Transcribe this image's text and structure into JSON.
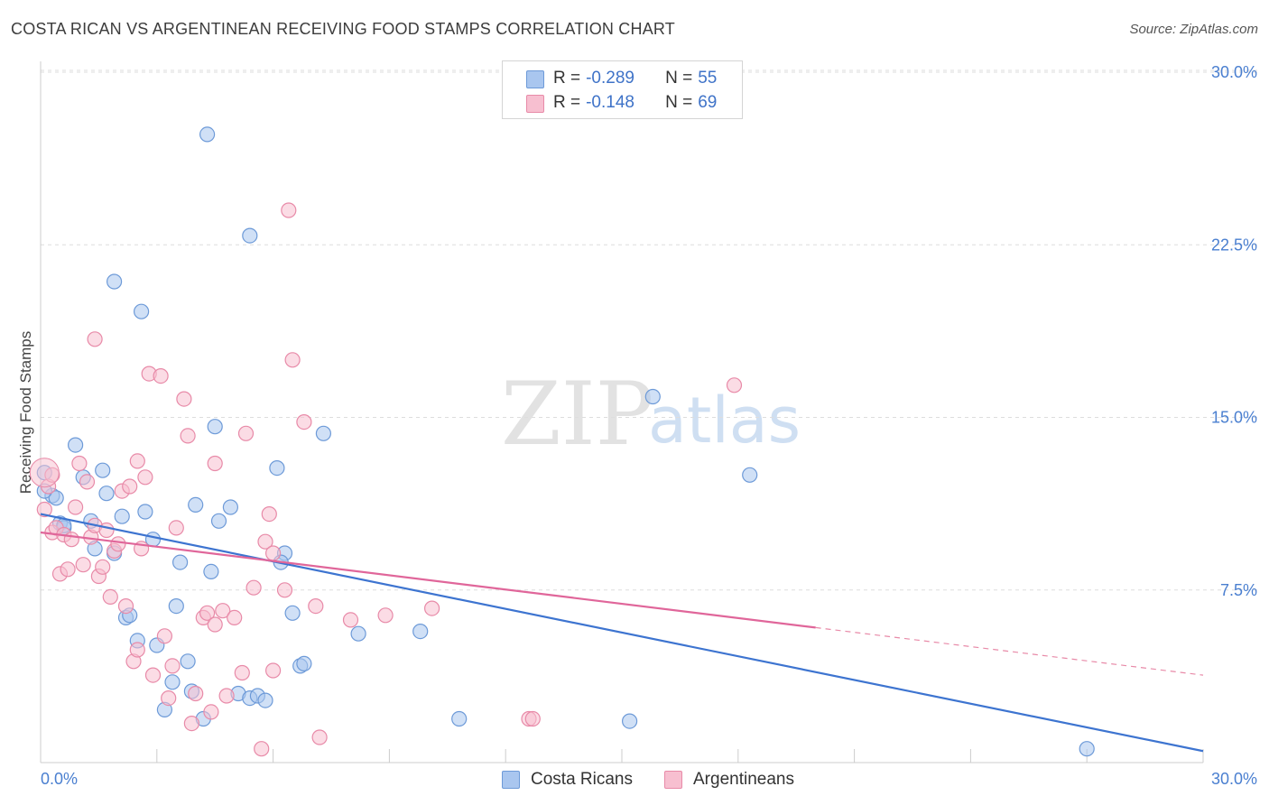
{
  "header": {
    "title": "COSTA RICAN VS ARGENTINEAN RECEIVING FOOD STAMPS CORRELATION CHART",
    "source": "Source: ZipAtlas.com"
  },
  "watermark": {
    "zip": "ZIP",
    "atlas": "atlas"
  },
  "stats": [
    {
      "r_label": "R =",
      "r_value": "-0.289",
      "n_label": "N =",
      "n_value": "55",
      "color": "#a9c6ef",
      "border": "#6d9ad8"
    },
    {
      "r_label": "R =",
      "r_value": "-0.148",
      "n_label": "N =",
      "n_value": "69",
      "color": "#f7bfd0",
      "border": "#e88aa8"
    }
  ],
  "legend": [
    {
      "label": "Costa Ricans",
      "color": "#a9c6ef",
      "border": "#6d9ad8"
    },
    {
      "label": "Argentineans",
      "color": "#f7bfd0",
      "border": "#e88aa8"
    }
  ],
  "chart_data": {
    "type": "scatter",
    "title": "COSTA RICAN VS ARGENTINEAN RECEIVING FOOD STAMPS CORRELATION CHART",
    "xlabel": "",
    "ylabel": "Receiving Food Stamps",
    "xlim": [
      0,
      30
    ],
    "ylim": [
      0,
      30
    ],
    "x_tick_labels": [
      "0.0%",
      "30.0%"
    ],
    "y_ticks": [
      7.5,
      15.0,
      22.5,
      30.0
    ],
    "y_tick_labels": [
      "7.5%",
      "15.0%",
      "22.5%",
      "30.0%"
    ],
    "grid": "horizontal dashed",
    "legend_position": "bottom-center",
    "series": [
      {
        "name": "Costa Ricans",
        "color": "#6d9ad8",
        "fill": "#a9c6ef",
        "trend": {
          "x": [
            0,
            30
          ],
          "y": [
            10.8,
            0.5
          ],
          "dashed_from": null
        },
        "points": [
          [
            0.1,
            12.6
          ],
          [
            0.3,
            11.6
          ],
          [
            0.4,
            11.5
          ],
          [
            0.5,
            10.4
          ],
          [
            0.6,
            10.2
          ],
          [
            0.9,
            13.8
          ],
          [
            1.1,
            12.4
          ],
          [
            1.3,
            10.5
          ],
          [
            1.4,
            9.3
          ],
          [
            1.6,
            12.7
          ],
          [
            1.7,
            11.7
          ],
          [
            1.9,
            9.1
          ],
          [
            2.1,
            10.7
          ],
          [
            2.2,
            6.3
          ],
          [
            2.3,
            6.4
          ],
          [
            2.5,
            5.3
          ],
          [
            2.7,
            10.9
          ],
          [
            2.9,
            9.7
          ],
          [
            3.0,
            5.1
          ],
          [
            3.2,
            2.3
          ],
          [
            3.4,
            3.5
          ],
          [
            3.5,
            6.8
          ],
          [
            3.6,
            8.7
          ],
          [
            3.8,
            4.4
          ],
          [
            3.9,
            3.1
          ],
          [
            4.0,
            11.2
          ],
          [
            4.2,
            1.9
          ],
          [
            4.4,
            8.3
          ],
          [
            4.5,
            14.6
          ],
          [
            4.6,
            10.5
          ],
          [
            4.9,
            11.1
          ],
          [
            5.1,
            3.0
          ],
          [
            5.4,
            2.8
          ],
          [
            5.6,
            2.9
          ],
          [
            5.8,
            2.7
          ],
          [
            6.1,
            12.8
          ],
          [
            6.3,
            9.1
          ],
          [
            6.5,
            6.5
          ],
          [
            6.7,
            4.2
          ],
          [
            6.8,
            4.3
          ],
          [
            6.2,
            8.7
          ],
          [
            7.3,
            14.3
          ],
          [
            8.2,
            5.6
          ],
          [
            9.8,
            5.7
          ],
          [
            10.8,
            1.9
          ],
          [
            15.8,
            15.9
          ],
          [
            15.2,
            1.8
          ],
          [
            18.3,
            12.5
          ],
          [
            27.0,
            0.6
          ],
          [
            4.3,
            27.3
          ],
          [
            5.4,
            22.9
          ],
          [
            1.9,
            20.9
          ],
          [
            2.6,
            19.6
          ],
          [
            0.1,
            11.8
          ],
          [
            0.6,
            10.3
          ]
        ]
      },
      {
        "name": "Argentineans",
        "color": "#e88aa8",
        "fill": "#f7bfd0",
        "trend": {
          "x": [
            0,
            30
          ],
          "y": [
            10.0,
            3.8
          ],
          "dashed_from": 20.0
        },
        "points": [
          [
            0.1,
            11.0
          ],
          [
            0.2,
            12.0
          ],
          [
            0.3,
            10.0
          ],
          [
            0.4,
            10.2
          ],
          [
            0.5,
            8.2
          ],
          [
            0.6,
            9.9
          ],
          [
            0.7,
            8.4
          ],
          [
            0.8,
            9.7
          ],
          [
            0.9,
            11.1
          ],
          [
            1.0,
            13.0
          ],
          [
            1.1,
            8.6
          ],
          [
            1.2,
            12.2
          ],
          [
            1.3,
            9.8
          ],
          [
            1.4,
            10.3
          ],
          [
            1.5,
            8.1
          ],
          [
            1.6,
            8.5
          ],
          [
            1.7,
            10.1
          ],
          [
            1.8,
            7.2
          ],
          [
            1.9,
            9.2
          ],
          [
            2.0,
            9.5
          ],
          [
            2.1,
            11.8
          ],
          [
            2.2,
            6.8
          ],
          [
            2.3,
            12.0
          ],
          [
            2.4,
            4.4
          ],
          [
            2.5,
            4.9
          ],
          [
            2.6,
            9.3
          ],
          [
            2.7,
            12.4
          ],
          [
            2.8,
            16.9
          ],
          [
            2.9,
            3.8
          ],
          [
            3.1,
            16.8
          ],
          [
            3.2,
            5.5
          ],
          [
            3.4,
            4.2
          ],
          [
            3.5,
            10.2
          ],
          [
            3.7,
            15.8
          ],
          [
            3.8,
            14.2
          ],
          [
            3.9,
            1.7
          ],
          [
            4.0,
            3.0
          ],
          [
            4.2,
            6.3
          ],
          [
            4.3,
            6.5
          ],
          [
            4.4,
            2.2
          ],
          [
            4.5,
            13.0
          ],
          [
            4.7,
            6.6
          ],
          [
            5.0,
            6.3
          ],
          [
            5.2,
            3.9
          ],
          [
            5.3,
            14.3
          ],
          [
            5.5,
            7.6
          ],
          [
            5.7,
            0.6
          ],
          [
            5.8,
            9.6
          ],
          [
            5.9,
            10.8
          ],
          [
            6.0,
            9.1
          ],
          [
            6.3,
            7.5
          ],
          [
            6.4,
            24.0
          ],
          [
            6.5,
            17.5
          ],
          [
            6.8,
            14.8
          ],
          [
            7.1,
            6.8
          ],
          [
            7.2,
            1.1
          ],
          [
            8.0,
            6.2
          ],
          [
            8.9,
            6.4
          ],
          [
            10.1,
            6.7
          ],
          [
            12.6,
            1.9
          ],
          [
            12.7,
            1.9
          ],
          [
            17.9,
            16.4
          ],
          [
            1.4,
            18.4
          ],
          [
            2.5,
            13.1
          ],
          [
            3.3,
            2.8
          ],
          [
            4.8,
            2.9
          ],
          [
            6.0,
            4.0
          ],
          [
            0.3,
            12.5
          ],
          [
            4.5,
            6.0
          ]
        ]
      }
    ]
  }
}
